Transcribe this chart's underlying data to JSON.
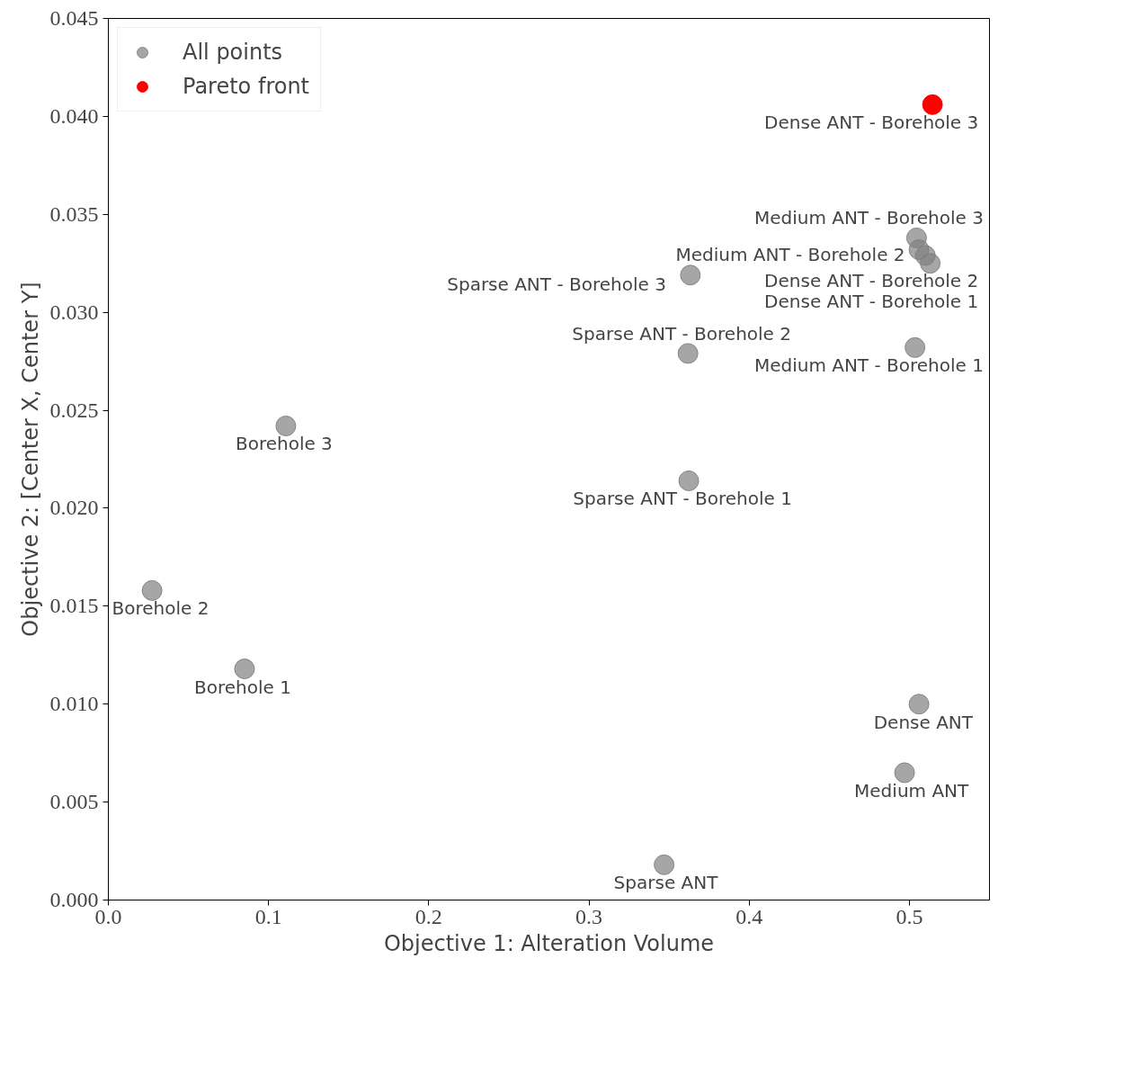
{
  "chart_data": {
    "type": "scatter",
    "xlabel": "Objective 1: Alteration Volume",
    "ylabel": "Objective 2: [Center X, Center Y]",
    "xlim": [
      0,
      0.55
    ],
    "ylim": [
      0,
      0.045
    ],
    "xticks": [
      {
        "value": 0,
        "label": "0.0"
      },
      0.1,
      0.2,
      0.3,
      0.4,
      0.5
    ],
    "yticks": [
      {
        "value": 0,
        "label": "0.000"
      },
      {
        "value": 0.005,
        "label": "0.005"
      },
      {
        "value": 0.01,
        "label": "0.010"
      },
      {
        "value": 0.015,
        "label": "0.015"
      },
      {
        "value": 0.02,
        "label": "0.020"
      },
      {
        "value": 0.025,
        "label": "0.025"
      },
      {
        "value": 0.03,
        "label": "0.030"
      },
      {
        "value": 0.035,
        "label": "0.035"
      },
      {
        "value": 0.04,
        "label": "0.040"
      },
      {
        "value": 0.045,
        "label": "0.045"
      }
    ],
    "grid": false,
    "legend": "top left",
    "marker": "circle",
    "series": [
      {
        "name": "All points",
        "color": "#808080",
        "x": [
          0.5045,
          0.506,
          0.51,
          0.513,
          0.3633,
          0.5035,
          0.3618,
          0.3623,
          0.1108,
          0.0273,
          0.085,
          0.506,
          0.497,
          0.3469
        ],
        "values": [
          0.0338,
          0.0332,
          0.0329,
          0.0325,
          0.0319,
          0.0282,
          0.0279,
          0.0214,
          0.0242,
          0.0158,
          0.0118,
          0.01,
          0.0065,
          0.0018
        ]
      },
      {
        "name": "Pareto front",
        "color": "#ff0000",
        "x": [
          0.5144
        ],
        "values": [
          0.0406
        ]
      }
    ],
    "annotations": [
      {
        "text": "Dense ANT - Borehole 3",
        "x": 0.5144,
        "y": 0.0406
      },
      {
        "text": "Medium ANT - Borehole 3",
        "x": 0.5045,
        "y": 0.0338
      },
      {
        "text": "Medium ANT - Borehole 2",
        "x": 0.506,
        "y": 0.0332
      },
      {
        "text": "Dense ANT - Borehole 2",
        "x": 0.51,
        "y": 0.0329
      },
      {
        "text": "Dense ANT - Borehole 1",
        "x": 0.513,
        "y": 0.0325
      },
      {
        "text": "Sparse ANT - Borehole 3",
        "x": 0.3633,
        "y": 0.0319
      },
      {
        "text": "Medium ANT - Borehole 1",
        "x": 0.5035,
        "y": 0.0282
      },
      {
        "text": "Sparse ANT - Borehole 2",
        "x": 0.3618,
        "y": 0.0279
      },
      {
        "text": "Sparse ANT - Borehole 1",
        "x": 0.3623,
        "y": 0.0214
      },
      {
        "text": "Borehole 3",
        "x": 0.1108,
        "y": 0.0242
      },
      {
        "text": "Borehole 2",
        "x": 0.0273,
        "y": 0.0158
      },
      {
        "text": "Borehole 1",
        "x": 0.085,
        "y": 0.0118
      },
      {
        "text": "Dense ANT",
        "x": 0.506,
        "y": 0.01
      },
      {
        "text": "Medium ANT",
        "x": 0.497,
        "y": 0.0065
      },
      {
        "text": "Sparse ANT",
        "x": 0.3469,
        "y": 0.0018
      }
    ]
  }
}
